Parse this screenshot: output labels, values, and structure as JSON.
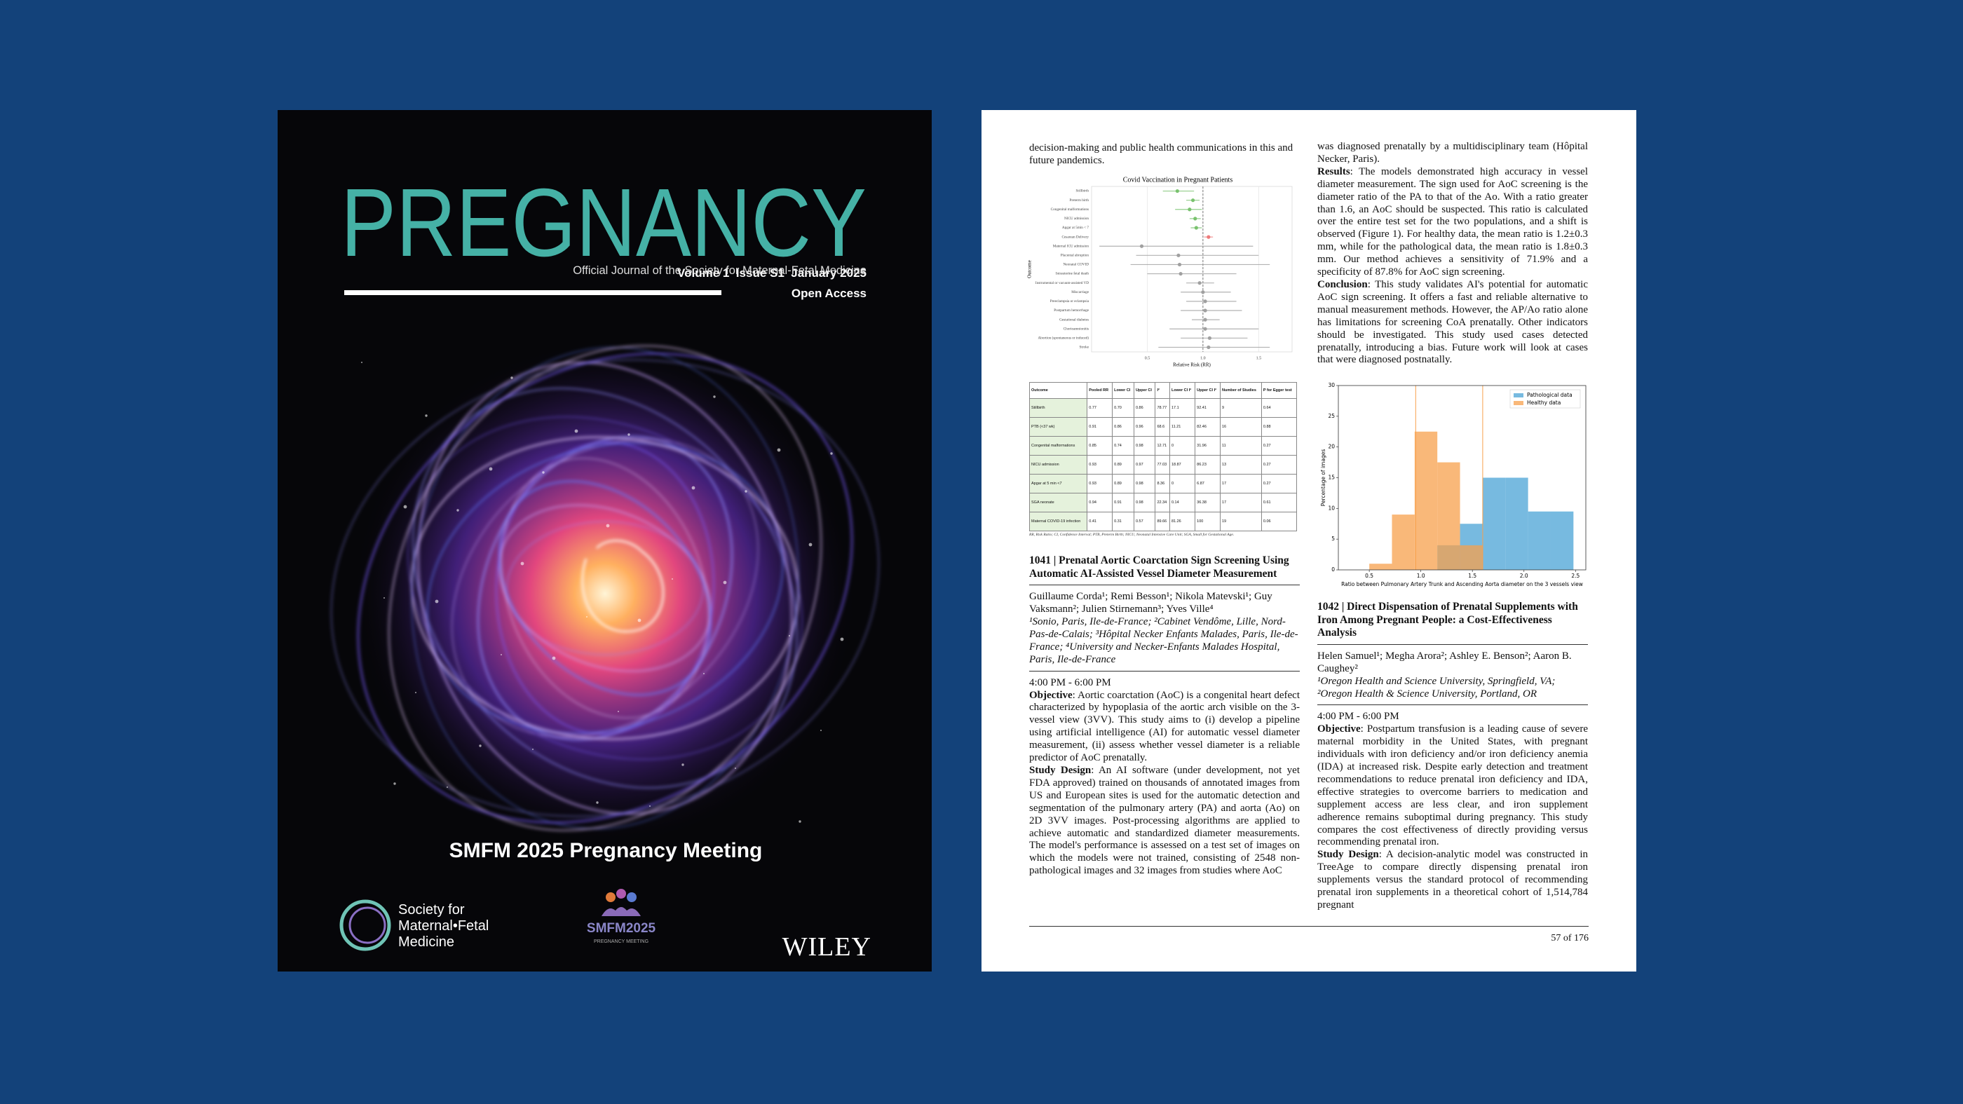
{
  "cover": {
    "issue_line": "Volume 1  Issue S1  January 2025",
    "title": "PREGNANCY",
    "subtitle": "Official Journal of the Society for Maternal-Fetal Medicine",
    "access": "Open Access",
    "meeting": "SMFM 2025 Pregnancy Meeting",
    "society_lines": [
      "Society for",
      "Maternal•Fetal",
      "Medicine"
    ],
    "meeting_logo": "SMFM2025",
    "meeting_logo_sub": "PREGNANCY MEETING",
    "publisher": "WILEY"
  },
  "page": {
    "carryover_text": "decision-making and public health communications in this and future pandemics.",
    "forest_plot": {
      "type": "forest",
      "title": "Covid Vaccination in Pregnant Patients",
      "ylabel": "Outcome",
      "xlabel": "Relative Risk (RR)",
      "xlim": [
        0,
        1.8
      ],
      "xticks": [
        0.5,
        {
          "value": 1,
          "label": "1.0"
        },
        1.5
      ],
      "reference_line": 1,
      "categories": [
        "Stillbirth",
        "Preterm birth",
        "Congenital malformations",
        "NICU admission",
        "Apgar at 5min < 7",
        "Cesarean Delivery",
        "Maternal ICU admission",
        "Placental abruption",
        "Neonatal COVID",
        "Intrauterine fetal death",
        "Instrumental or vacuum-assisted VD",
        "Miscarriage",
        "Preeclampsia or eclampsia",
        "Postpartum hemorrhage",
        "Gestational diabetes",
        "Chorioamnionitis",
        "Abortion (spontaneous or induced)",
        "Stroke"
      ],
      "values": [
        0.77,
        0.91,
        0.88,
        0.93,
        0.94,
        1.05,
        0.45,
        0.78,
        0.79,
        0.8,
        0.97,
        1.0,
        1.02,
        1.02,
        1.02,
        1.02,
        1.06,
        1.05
      ],
      "lower": [
        0.64,
        0.85,
        0.75,
        0.88,
        0.89,
        1.01,
        0.07,
        0.4,
        0.35,
        0.5,
        0.85,
        0.8,
        0.85,
        0.8,
        0.9,
        0.7,
        0.8,
        0.6
      ],
      "upper": [
        0.92,
        0.97,
        0.99,
        0.98,
        0.99,
        1.09,
        1.45,
        1.5,
        1.6,
        1.3,
        1.1,
        1.25,
        1.3,
        1.35,
        1.15,
        1.5,
        1.4,
        1.6
      ],
      "colors": [
        "#79c26e",
        "#79c26e",
        "#79c26e",
        "#79c26e",
        "#79c26e",
        "#ee7a7a",
        "#a0a0a0",
        "#a0a0a0",
        "#a0a0a0",
        "#a0a0a0",
        "#a0a0a0",
        "#a0a0a0",
        "#a0a0a0",
        "#a0a0a0",
        "#a0a0a0",
        "#a0a0a0",
        "#a0a0a0",
        "#a0a0a0"
      ],
      "grid": true
    },
    "table": {
      "header": [
        "Outcome",
        "Pooled RR",
        "Lower CI",
        "Upper CI",
        "I²",
        "Lower CI I²",
        "Upper CI I²",
        "Number of Studies",
        "P for Egger test"
      ],
      "rows": [
        [
          "Stillbirth",
          "0.77",
          "0.70",
          "0.86",
          "78.77",
          "17.1",
          "92.41",
          "9",
          "0.64"
        ],
        [
          "PTB (<37 wk)",
          "0.91",
          "0.86",
          "0.96",
          "68.6",
          "11.21",
          "82.46",
          "16",
          "0.88"
        ],
        [
          "Congenital malformations",
          "0.85",
          "0.74",
          "0.98",
          "12.71",
          "0",
          "31.96",
          "11",
          "0.27"
        ],
        [
          "NICU admission",
          "0.93",
          "0.89",
          "0.97",
          "77.03",
          "18.87",
          "86.23",
          "13",
          "0.27"
        ],
        [
          "Apgar at 5 min <7",
          "0.93",
          "0.89",
          "0.98",
          "8.36",
          "0",
          "6.87",
          "17",
          "0.27"
        ],
        [
          "SGA neonate",
          "0.94",
          "0.91",
          "0.98",
          "22.34",
          "0.14",
          "36.38",
          "17",
          "0.61"
        ],
        [
          "Maternal COVID-19 infection",
          "0.41",
          "0.31",
          "0.57",
          "89.66",
          "81.26",
          "100",
          "19",
          "0.06"
        ]
      ],
      "footnote": "RR, Risk Ratio; CI, Confidence Interval; PTB, Preterm Birth; NICU, Neonatal Intensive Care Unit; SGA, Small for Gestational Age."
    },
    "article_1041": {
      "heading": "1041 | Prenatal Aortic Coarctation Sign Screening Using Automatic AI-Assisted Vessel Diameter Measurement",
      "authors": "Guillaume Corda¹; Remi Besson¹; Nikola Matevski¹; Guy Vaksmann²; Julien Stirnemann³; Yves Ville⁴",
      "affiliations": "¹Sonio, Paris, Ile-de-France; ²Cabinet Vendôme, Lille, Nord-Pas-de-Calais; ³Hôpital Necker Enfants Malades, Paris, Ile-de-France; ⁴University and Necker-Enfants Malades Hospital, Paris, Ile-de-France",
      "time": "4:00 PM - 6:00 PM",
      "objective": {
        "label": "Objective",
        "text": ": Aortic coarctation (AoC) is a congenital heart defect characterized by hypoplasia of the aortic arch visible on the 3-vessel view (3VV). This study aims to (i) develop a pipeline using artificial intelligence (AI) for automatic vessel diameter measurement, (ii) assess whether vessel diameter is a reliable predictor of AoC prenatally."
      },
      "study_design": {
        "label": "Study Design",
        "text": ": An AI software (under development, not yet FDA approved) trained on thousands of annotated images from US and European sites is used for the automatic detection and segmentation of the pulmonary artery (PA) and aorta (Ao) on 2D 3VV images. Post-processing algorithms are applied to achieve automatic and standardized diameter measurements. The model's performance is assessed on a test set of images on which the models were not trained, consisting of 2548 non-pathological images and 32 images from studies where AoC"
      },
      "study_design_continued": "was diagnosed prenatally by a multidisciplinary team (Hôpital Necker, Paris).",
      "results": {
        "label": "Results",
        "text": ": The models demonstrated high accuracy in vessel diameter measurement. The sign used for AoC screening is the diameter ratio of the PA to that of the Ao. With a ratio greater than 1.6, an AoC should be suspected. This ratio is calculated over the entire test set for the two populations, and a shift is observed (Figure 1). For healthy data, the mean ratio is 1.2±0.3 mm, while for the pathological data, the mean ratio is 1.8±0.3 mm. Our method achieves a sensitivity of 71.9% and a specificity of 87.8% for AoC sign screening."
      },
      "conclusion": {
        "label": "Conclusion",
        "text": ": This study validates AI's potential for automatic AoC sign screening. It offers a fast and reliable alternative to manual measurement methods. However, the AP/Ao ratio alone has limitations for screening CoA prenatally. Other indicators should be investigated. This study used cases detected prenatally, introducing a bias. Future work will look at cases that were diagnosed postnatally."
      }
    },
    "histogram": {
      "type": "histogram",
      "ylabel": "Percentage of images",
      "xlabel": "Ratio between Pulmonary Artery Trunk and Ascending Aorta diameter on the 3 vessels view",
      "bins": [
        0.5,
        0.72,
        0.94,
        1.16,
        1.38,
        1.6,
        1.82,
        2.04,
        2.26,
        2.48
      ],
      "xlim": [
        0.2,
        2.6
      ],
      "xticks": [
        0.5,
        {
          "value": 1,
          "label": "1.0"
        },
        1.5,
        {
          "value": 2,
          "label": "2.0"
        },
        2.5
      ],
      "ylim": [
        0,
        30
      ],
      "yticks": [
        0,
        5,
        10,
        15,
        20,
        25,
        30
      ],
      "reference_lines": [
        0.95,
        1.6
      ],
      "legend": "upper right",
      "series": [
        {
          "name": "Pathological data",
          "color": "#4aa3d6",
          "values": [
            0,
            0,
            0,
            4,
            7.5,
            15,
            15,
            9.5,
            9.5
          ]
        },
        {
          "name": "Healthy data",
          "color": "#f7a04c",
          "values": [
            1,
            9,
            22.5,
            17.5,
            4,
            0,
            0,
            0,
            0
          ]
        }
      ]
    },
    "article_1042": {
      "heading": "1042 | Direct Dispensation of Prenatal Supplements with Iron Among Pregnant People: a Cost-Effectiveness Analysis",
      "authors": "Helen Samuel¹; Megha Arora²; Ashley E. Benson²; Aaron B. Caughey²",
      "affiliations": "¹Oregon Health and Science University, Springfield, VA; ²Oregon Health & Science University, Portland, OR",
      "time": "4:00 PM - 6:00 PM",
      "objective": {
        "label": "Objective",
        "text": ": Postpartum transfusion is a leading cause of severe maternal morbidity in the United States, with pregnant individuals with iron deficiency and/or iron deficiency anemia (IDA) at increased risk. Despite early detection and treatment recommendations to reduce prenatal iron deficiency and IDA, effective strategies to overcome barriers to medication and supplement access are less clear, and iron supplement adherence remains suboptimal during pregnancy. This study compares the cost effectiveness of directly providing versus recommending prenatal iron."
      },
      "study_design": {
        "label": "Study Design",
        "text": ": A decision-analytic model was constructed in TreeAge to compare directly dispensing prenatal iron supplements versus the standard protocol of recommending prenatal iron supplements in a theoretical cohort of 1,514,784 pregnant"
      }
    },
    "page_number": "57 of 176"
  }
}
